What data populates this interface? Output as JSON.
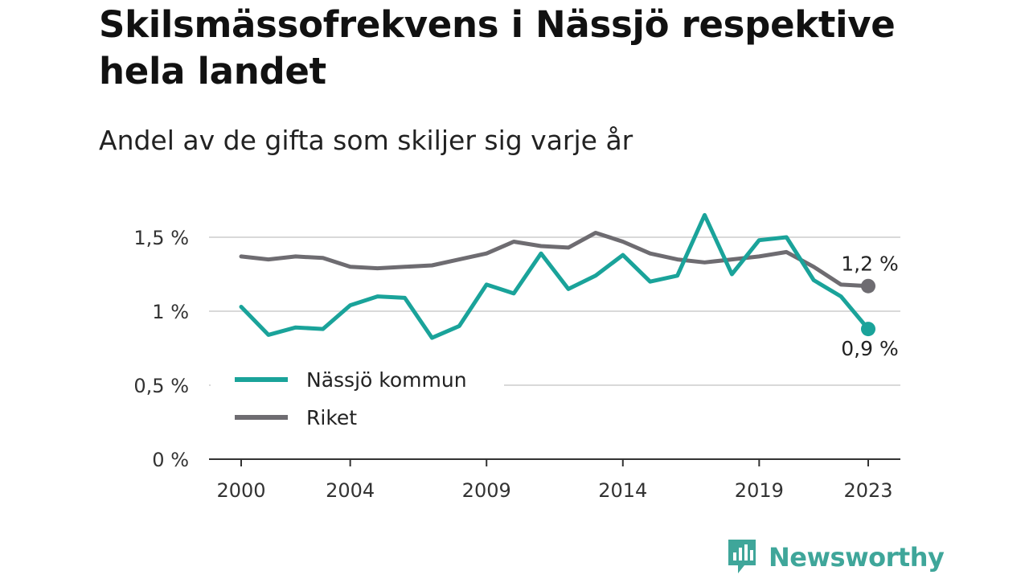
{
  "title": "Skilsmässofrekvens i Nässjö respektive hela landet",
  "subtitle": "Andel av de gifta som skiljer sig varje år",
  "brand": {
    "name": "Newsworthy",
    "icon": "newsworthy-logo-icon",
    "color": "#3fa69a"
  },
  "chart_data": {
    "type": "line",
    "x": [
      2000,
      2001,
      2002,
      2003,
      2004,
      2005,
      2006,
      2007,
      2008,
      2009,
      2010,
      2011,
      2012,
      2013,
      2014,
      2015,
      2016,
      2017,
      2018,
      2019,
      2020,
      2021,
      2022,
      2023
    ],
    "x_ticks": [
      2000,
      2004,
      2009,
      2014,
      2019,
      2023
    ],
    "x_tick_labels": [
      "2000",
      "2004",
      "2009",
      "2014",
      "2019",
      "2023"
    ],
    "ylim": [
      0,
      1.6
    ],
    "y_ticks": [
      0,
      0.5,
      1,
      1.5
    ],
    "y_tick_labels": [
      "0 %",
      "0,5 %",
      "1 %",
      "1,5 %"
    ],
    "grid": true,
    "legend_position": "bottom-left",
    "series": [
      {
        "name": "Nässjö kommun",
        "color": "#1aa39a",
        "values": [
          1.03,
          0.84,
          0.89,
          0.88,
          1.04,
          1.1,
          1.09,
          0.82,
          0.9,
          1.18,
          1.12,
          1.39,
          1.15,
          1.24,
          1.38,
          1.2,
          1.24,
          1.65,
          1.25,
          1.48,
          1.5,
          1.21,
          1.1,
          0.88
        ],
        "end_label": "0,9 %"
      },
      {
        "name": "Riket",
        "color": "#6e6c71",
        "values": [
          1.37,
          1.35,
          1.37,
          1.36,
          1.3,
          1.29,
          1.3,
          1.31,
          1.35,
          1.39,
          1.47,
          1.44,
          1.43,
          1.53,
          1.47,
          1.39,
          1.35,
          1.33,
          1.35,
          1.37,
          1.4,
          1.3,
          1.18,
          1.17
        ],
        "end_label": "1,2 %"
      }
    ]
  }
}
